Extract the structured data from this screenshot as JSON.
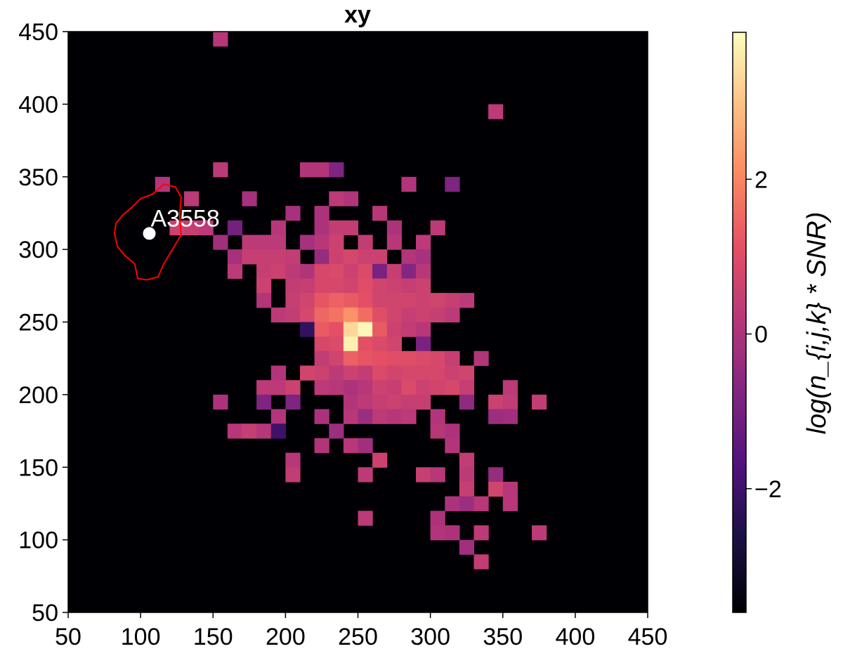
{
  "chart_data": {
    "type": "heatmap",
    "title": "xy",
    "xlabel": "",
    "ylabel": "",
    "xlim": [
      50,
      450
    ],
    "ylim": [
      50,
      450
    ],
    "x_ticks": [
      "50",
      "100",
      "150",
      "200",
      "250",
      "300",
      "350",
      "400",
      "450"
    ],
    "y_ticks": [
      "50",
      "100",
      "150",
      "200",
      "250",
      "300",
      "350",
      "400",
      "450"
    ],
    "x_tick_values": [
      50,
      100,
      150,
      200,
      250,
      300,
      350,
      400,
      450
    ],
    "y_tick_values": [
      50,
      100,
      150,
      200,
      250,
      300,
      350,
      400,
      450
    ],
    "cell_size": 10,
    "background_color": "#000004",
    "colormap": "magma",
    "colorbar": {
      "label": "log(n_{i,j,k} * SNR)",
      "range": [
        -3.6,
        3.9
      ],
      "ticks": [
        "2",
        "0",
        "−2"
      ],
      "tick_values": [
        2,
        0,
        -2
      ]
    },
    "annotation": {
      "text": "A3558",
      "point": [
        106,
        311
      ],
      "color": "#ffffff",
      "contour_color": "#ff0000",
      "contour": [
        [
          116,
          345
        ],
        [
          124,
          343
        ],
        [
          128,
          336
        ],
        [
          127,
          324
        ],
        [
          128,
          310
        ],
        [
          122,
          300
        ],
        [
          116,
          290
        ],
        [
          112,
          281
        ],
        [
          104,
          279
        ],
        [
          98,
          280
        ],
        [
          96,
          290
        ],
        [
          89,
          296
        ],
        [
          84,
          302
        ],
        [
          82,
          311
        ],
        [
          83,
          318
        ],
        [
          88,
          324
        ],
        [
          93,
          328
        ],
        [
          100,
          335
        ],
        [
          108,
          338
        ],
        [
          114,
          343
        ],
        [
          116,
          345
        ]
      ]
    },
    "cells": [
      [
        155,
        445,
        0.2
      ],
      [
        345,
        395,
        0.3
      ],
      [
        155,
        355,
        0.3
      ],
      [
        215,
        355,
        0.1
      ],
      [
        225,
        355,
        0.1
      ],
      [
        235,
        355,
        -0.8
      ],
      [
        285,
        345,
        0.1
      ],
      [
        315,
        345,
        -0.8
      ],
      [
        115,
        345,
        0.1
      ],
      [
        135,
        335,
        0.3
      ],
      [
        175,
        335,
        -0.1
      ],
      [
        235,
        335,
        0.3
      ],
      [
        245,
        335,
        0.1
      ],
      [
        205,
        325,
        -0.1
      ],
      [
        225,
        325,
        0.0
      ],
      [
        265,
        325,
        0.2
      ],
      [
        125,
        315,
        0.6
      ],
      [
        135,
        315,
        0.5
      ],
      [
        145,
        315,
        0.3
      ],
      [
        165,
        315,
        -1.0
      ],
      [
        195,
        315,
        0.2
      ],
      [
        225,
        315,
        0.0
      ],
      [
        235,
        315,
        0.4
      ],
      [
        245,
        315,
        0.4
      ],
      [
        275,
        315,
        0.0
      ],
      [
        305,
        315,
        0.3
      ],
      [
        155,
        305,
        -0.2
      ],
      [
        175,
        305,
        0.3
      ],
      [
        185,
        305,
        0.3
      ],
      [
        195,
        305,
        0.3
      ],
      [
        215,
        305,
        -0.1
      ],
      [
        225,
        305,
        0.2
      ],
      [
        235,
        305,
        0.6
      ],
      [
        255,
        305,
        0.4
      ],
      [
        275,
        305,
        0.2
      ],
      [
        295,
        305,
        0.3
      ],
      [
        165,
        295,
        -0.1
      ],
      [
        175,
        295,
        0.5
      ],
      [
        185,
        295,
        0.5
      ],
      [
        195,
        295,
        0.5
      ],
      [
        205,
        295,
        0.4
      ],
      [
        225,
        295,
        -0.4
      ],
      [
        235,
        295,
        0.6
      ],
      [
        245,
        295,
        0.8
      ],
      [
        255,
        295,
        0.6
      ],
      [
        265,
        295,
        0.6
      ],
      [
        285,
        295,
        0.1
      ],
      [
        295,
        295,
        -0.1
      ],
      [
        165,
        285,
        0.3
      ],
      [
        185,
        285,
        0.5
      ],
      [
        195,
        285,
        0.6
      ],
      [
        205,
        285,
        0.3
      ],
      [
        215,
        285,
        0.1
      ],
      [
        225,
        285,
        0.8
      ],
      [
        235,
        285,
        0.9
      ],
      [
        245,
        285,
        0.6
      ],
      [
        255,
        285,
        0.9
      ],
      [
        265,
        285,
        -0.9
      ],
      [
        275,
        285,
        0.5
      ],
      [
        285,
        285,
        -0.7
      ],
      [
        295,
        285,
        0.2
      ],
      [
        185,
        275,
        0.6
      ],
      [
        205,
        275,
        0.4
      ],
      [
        215,
        275,
        0.5
      ],
      [
        225,
        275,
        0.8
      ],
      [
        235,
        275,
        0.8
      ],
      [
        245,
        275,
        0.7
      ],
      [
        255,
        275,
        1.0
      ],
      [
        265,
        275,
        0.7
      ],
      [
        275,
        275,
        0.6
      ],
      [
        285,
        275,
        0.5
      ],
      [
        295,
        275,
        0.6
      ],
      [
        185,
        265,
        0.1
      ],
      [
        205,
        265,
        0.5
      ],
      [
        215,
        265,
        0.7
      ],
      [
        225,
        265,
        1.2
      ],
      [
        235,
        265,
        1.4
      ],
      [
        245,
        265,
        1.3
      ],
      [
        255,
        265,
        1.1
      ],
      [
        265,
        265,
        0.7
      ],
      [
        275,
        265,
        0.7
      ],
      [
        285,
        265,
        0.7
      ],
      [
        295,
        265,
        0.6
      ],
      [
        305,
        265,
        0.7
      ],
      [
        315,
        265,
        0.5
      ],
      [
        325,
        265,
        0.3
      ],
      [
        195,
        255,
        0.3
      ],
      [
        205,
        255,
        0.4
      ],
      [
        215,
        255,
        0.8
      ],
      [
        225,
        255,
        1.5
      ],
      [
        235,
        255,
        1.7
      ],
      [
        245,
        255,
        2.2
      ],
      [
        255,
        255,
        1.6
      ],
      [
        265,
        255,
        1.0
      ],
      [
        275,
        255,
        0.7
      ],
      [
        285,
        255,
        0.5
      ],
      [
        295,
        255,
        0.6
      ],
      [
        305,
        255,
        0.5
      ],
      [
        315,
        255,
        0.3
      ],
      [
        215,
        245,
        -2.2
      ],
      [
        225,
        245,
        1.3
      ],
      [
        235,
        245,
        1.1
      ],
      [
        245,
        245,
        3.3
      ],
      [
        255,
        245,
        3.8
      ],
      [
        265,
        245,
        1.3
      ],
      [
        275,
        245,
        0.6
      ],
      [
        285,
        245,
        0.4
      ],
      [
        295,
        245,
        0.2
      ],
      [
        225,
        235,
        0.8
      ],
      [
        235,
        235,
        0.9
      ],
      [
        245,
        235,
        3.7
      ],
      [
        255,
        235,
        1.1
      ],
      [
        265,
        235,
        0.9
      ],
      [
        275,
        235,
        0.7
      ],
      [
        295,
        235,
        -0.9
      ],
      [
        225,
        225,
        0.4
      ],
      [
        235,
        225,
        0.7
      ],
      [
        245,
        225,
        1.4
      ],
      [
        255,
        225,
        1.2
      ],
      [
        265,
        225,
        1.1
      ],
      [
        275,
        225,
        1.0
      ],
      [
        285,
        225,
        1.0
      ],
      [
        295,
        225,
        0.9
      ],
      [
        305,
        225,
        0.8
      ],
      [
        315,
        225,
        0.5
      ],
      [
        335,
        225,
        0.1
      ],
      [
        195,
        215,
        0.1
      ],
      [
        215,
        215,
        0.7
      ],
      [
        225,
        215,
        0.6
      ],
      [
        235,
        215,
        0.3
      ],
      [
        245,
        215,
        0.6
      ],
      [
        255,
        215,
        0.4
      ],
      [
        265,
        215,
        0.9
      ],
      [
        275,
        215,
        0.7
      ],
      [
        285,
        215,
        0.8
      ],
      [
        295,
        215,
        0.8
      ],
      [
        305,
        215,
        0.8
      ],
      [
        315,
        215,
        0.6
      ],
      [
        325,
        215,
        0.7
      ],
      [
        185,
        205,
        0.3
      ],
      [
        195,
        205,
        0.3
      ],
      [
        205,
        205,
        0.6
      ],
      [
        225,
        205,
        0.3
      ],
      [
        235,
        205,
        0.2
      ],
      [
        245,
        205,
        0.0
      ],
      [
        255,
        205,
        0.2
      ],
      [
        265,
        205,
        0.6
      ],
      [
        275,
        205,
        0.5
      ],
      [
        285,
        205,
        0.9
      ],
      [
        295,
        205,
        0.6
      ],
      [
        305,
        205,
        0.7
      ],
      [
        315,
        205,
        0.8
      ],
      [
        325,
        205,
        0.5
      ],
      [
        355,
        205,
        0.3
      ],
      [
        155,
        195,
        0.0
      ],
      [
        185,
        195,
        -0.8
      ],
      [
        205,
        195,
        -0.8
      ],
      [
        245,
        195,
        0.1
      ],
      [
        255,
        195,
        0.3
      ],
      [
        265,
        195,
        0.5
      ],
      [
        275,
        195,
        0.6
      ],
      [
        285,
        195,
        0.5
      ],
      [
        295,
        195,
        0.5
      ],
      [
        325,
        195,
        -0.5
      ],
      [
        345,
        195,
        0.6
      ],
      [
        355,
        195,
        0.4
      ],
      [
        375,
        195,
        0.4
      ],
      [
        195,
        185,
        0.1
      ],
      [
        225,
        185,
        0.0
      ],
      [
        245,
        185,
        0.2
      ],
      [
        255,
        185,
        -0.3
      ],
      [
        265,
        185,
        0.3
      ],
      [
        275,
        185,
        0.2
      ],
      [
        285,
        185,
        0.3
      ],
      [
        305,
        185,
        0.1
      ],
      [
        345,
        185,
        -0.3
      ],
      [
        355,
        185,
        -0.2
      ],
      [
        165,
        175,
        0.2
      ],
      [
        175,
        175,
        0.5
      ],
      [
        185,
        175,
        0.2
      ],
      [
        195,
        175,
        -2.0
      ],
      [
        235,
        175,
        -0.3
      ],
      [
        305,
        175,
        0.2
      ],
      [
        315,
        175,
        0.0
      ],
      [
        225,
        165,
        0.1
      ],
      [
        245,
        165,
        0.2
      ],
      [
        255,
        165,
        -0.2
      ],
      [
        315,
        165,
        0.1
      ],
      [
        205,
        155,
        0.2
      ],
      [
        265,
        155,
        0.6
      ],
      [
        325,
        155,
        0.4
      ],
      [
        205,
        145,
        0.4
      ],
      [
        255,
        145,
        0.3
      ],
      [
        295,
        145,
        0.5
      ],
      [
        305,
        145,
        0.2
      ],
      [
        325,
        145,
        0.3
      ],
      [
        345,
        145,
        -0.4
      ],
      [
        325,
        135,
        0.5
      ],
      [
        345,
        135,
        0.7
      ],
      [
        355,
        135,
        0.2
      ],
      [
        315,
        125,
        0.0
      ],
      [
        325,
        125,
        -0.3
      ],
      [
        335,
        125,
        0.2
      ],
      [
        355,
        125,
        0.2
      ],
      [
        255,
        115,
        0.3
      ],
      [
        305,
        115,
        0.0
      ],
      [
        305,
        105,
        0.1
      ],
      [
        315,
        105,
        0.0
      ],
      [
        335,
        105,
        0.3
      ],
      [
        375,
        105,
        0.3
      ],
      [
        325,
        95,
        -0.2
      ],
      [
        335,
        85,
        0.4
      ]
    ]
  }
}
